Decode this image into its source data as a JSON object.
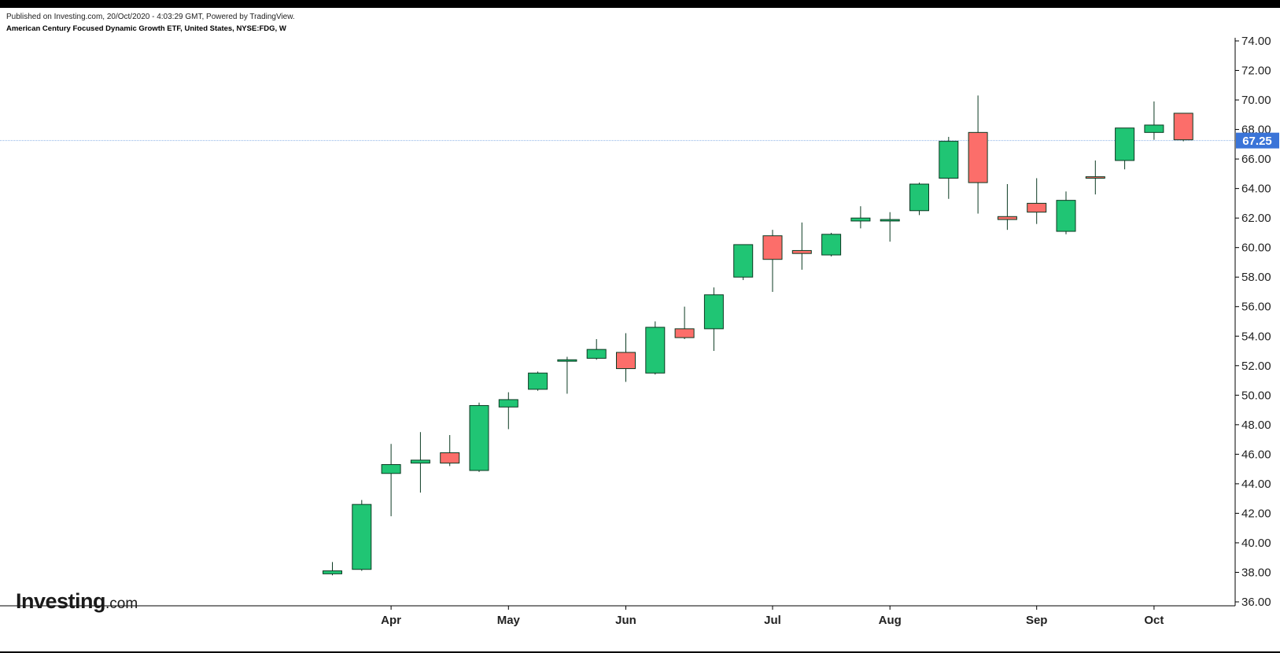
{
  "header": {
    "published": "Published on Investing.com, 20/Oct/2020 - 4:03:29 GMT, Powered by TradingView.",
    "symbol_title": "American Century Focused Dynamic Growth ETF, United States, NYSE:FDG, W"
  },
  "logo": {
    "brand": "Investing",
    "tld": ".com"
  },
  "colors": {
    "up": "#20c574",
    "down": "#fc6e6a",
    "outline": "#0b3a22",
    "price_line": "#8fb4e8",
    "price_label_bg": "#3a74d8",
    "axis": "#000000"
  },
  "chart_data": {
    "type": "candlestick",
    "interval": "W",
    "ylim": [
      36,
      74
    ],
    "y_ticks": [
      "36.00",
      "38.00",
      "40.00",
      "42.00",
      "44.00",
      "46.00",
      "48.00",
      "50.00",
      "52.00",
      "54.00",
      "56.00",
      "58.00",
      "60.00",
      "62.00",
      "64.00",
      "66.00",
      "68.00",
      "70.00",
      "72.00",
      "74.00"
    ],
    "x_ticks": [
      {
        "label": "Apr",
        "index": 2
      },
      {
        "label": "May",
        "index": 6
      },
      {
        "label": "Jun",
        "index": 10
      },
      {
        "label": "Jul",
        "index": 15
      },
      {
        "label": "Aug",
        "index": 19
      },
      {
        "label": "Sep",
        "index": 24
      },
      {
        "label": "Oct",
        "index": 28
      }
    ],
    "last_price": 67.25,
    "last_price_label": "67.25",
    "candles": [
      {
        "open": 37.9,
        "high": 38.7,
        "low": 37.8,
        "close": 38.1
      },
      {
        "open": 38.2,
        "high": 42.9,
        "low": 38.1,
        "close": 42.6
      },
      {
        "open": 44.7,
        "high": 46.7,
        "low": 41.8,
        "close": 45.3
      },
      {
        "open": 45.4,
        "high": 47.5,
        "low": 43.4,
        "close": 45.6
      },
      {
        "open": 46.1,
        "high": 47.3,
        "low": 45.2,
        "close": 45.4
      },
      {
        "open": 44.9,
        "high": 49.5,
        "low": 44.8,
        "close": 49.3
      },
      {
        "open": 49.2,
        "high": 50.2,
        "low": 47.7,
        "close": 49.7
      },
      {
        "open": 50.4,
        "high": 51.6,
        "low": 50.3,
        "close": 51.5
      },
      {
        "open": 52.3,
        "high": 52.6,
        "low": 50.1,
        "close": 52.4
      },
      {
        "open": 52.5,
        "high": 53.8,
        "low": 52.4,
        "close": 53.1
      },
      {
        "open": 52.9,
        "high": 54.2,
        "low": 50.9,
        "close": 51.8
      },
      {
        "open": 51.5,
        "high": 55.0,
        "low": 51.4,
        "close": 54.6
      },
      {
        "open": 54.5,
        "high": 56.0,
        "low": 53.8,
        "close": 53.9
      },
      {
        "open": 54.5,
        "high": 57.3,
        "low": 53.0,
        "close": 56.8
      },
      {
        "open": 58.0,
        "high": 60.2,
        "low": 57.8,
        "close": 60.2
      },
      {
        "open": 60.8,
        "high": 61.2,
        "low": 57.0,
        "close": 59.2
      },
      {
        "open": 59.8,
        "high": 61.7,
        "low": 58.5,
        "close": 59.6
      },
      {
        "open": 59.5,
        "high": 61.0,
        "low": 59.4,
        "close": 60.9
      },
      {
        "open": 61.8,
        "high": 62.8,
        "low": 61.3,
        "close": 62.0
      },
      {
        "open": 61.8,
        "high": 62.4,
        "low": 60.4,
        "close": 61.9
      },
      {
        "open": 62.5,
        "high": 64.4,
        "low": 62.2,
        "close": 64.3
      },
      {
        "open": 64.7,
        "high": 67.5,
        "low": 63.3,
        "close": 67.2
      },
      {
        "open": 67.8,
        "high": 70.3,
        "low": 62.3,
        "close": 64.4
      },
      {
        "open": 62.1,
        "high": 64.3,
        "low": 61.2,
        "close": 61.9
      },
      {
        "open": 63.0,
        "high": 64.7,
        "low": 61.6,
        "close": 62.4
      },
      {
        "open": 61.1,
        "high": 63.8,
        "low": 60.9,
        "close": 63.2
      },
      {
        "open": 64.8,
        "high": 65.9,
        "low": 63.6,
        "close": 64.7
      },
      {
        "open": 65.9,
        "high": 68.1,
        "low": 65.3,
        "close": 68.1
      },
      {
        "open": 67.8,
        "high": 69.9,
        "low": 67.3,
        "close": 68.3
      },
      {
        "open": 69.1,
        "high": 69.1,
        "low": 67.2,
        "close": 67.3
      }
    ]
  }
}
